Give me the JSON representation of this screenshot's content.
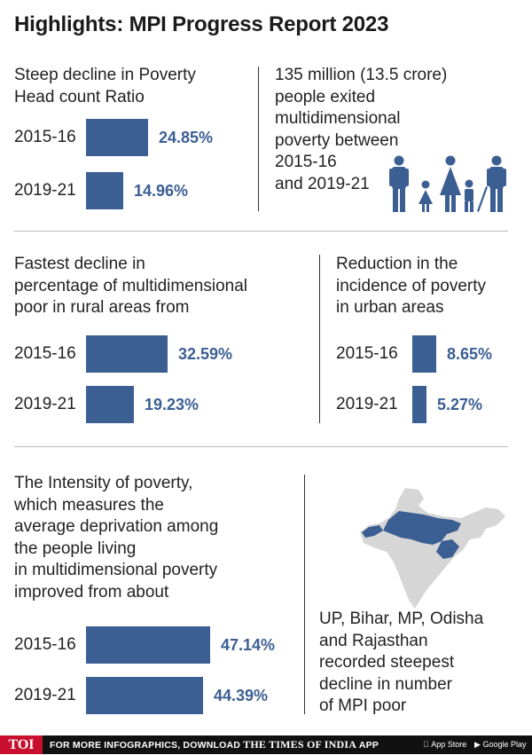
{
  "title": "Highlights: MPI Progress Report 2023",
  "chart_data": [
    {
      "type": "bar",
      "title": "Steep decline in Poverty Head count Ratio",
      "categories": [
        "2015-16",
        "2019-21"
      ],
      "values": [
        24.85,
        14.96
      ],
      "labels": [
        "24.85%",
        "14.96%"
      ]
    },
    {
      "type": "bar",
      "title": "Fastest decline in percentage of multidimensional poor in rural areas from",
      "categories": [
        "2015-16",
        "2019-21"
      ],
      "values": [
        32.59,
        19.23
      ],
      "labels": [
        "32.59%",
        "19.23%"
      ]
    },
    {
      "type": "bar",
      "title": "Reduction in the incidence of poverty in urban areas",
      "categories": [
        "2015-16",
        "2019-21"
      ],
      "values": [
        8.65,
        5.27
      ],
      "labels": [
        "8.65%",
        "5.27%"
      ]
    },
    {
      "type": "bar",
      "title": "The Intensity of poverty, which measures the average deprivation among the people living in multidimensional poverty improved from about",
      "categories": [
        "2015-16",
        "2019-21"
      ],
      "values": [
        47.14,
        44.39
      ],
      "labels": [
        "47.14%",
        "44.39%"
      ]
    }
  ],
  "panels": {
    "hcr": {
      "line1": "Steep decline in Poverty",
      "line2": "Head count Ratio"
    },
    "exited": {
      "lines": [
        "135 million (13.5 crore)",
        "people exited",
        "multidimensional",
        "poverty between",
        "2015-16",
        "and 2019-21"
      ]
    },
    "rural": {
      "lines": [
        "Fastest decline in",
        "percentage of multidimensional",
        "poor in rural areas from"
      ]
    },
    "urban": {
      "lines": [
        "Reduction in the",
        "incidence of poverty",
        "in urban areas"
      ]
    },
    "intensity": {
      "lines": [
        "The Intensity of poverty,",
        "which measures the",
        "average deprivation among",
        "the people living",
        "in multidimensional poverty",
        "improved from about"
      ]
    },
    "states": {
      "lines": [
        "UP, Bihar, MP, Odisha",
        "and Rajasthan",
        "recorded steepest",
        "decline in number",
        "of MPI poor"
      ]
    }
  },
  "icons": {
    "people": "family-icon",
    "map": "india-map-icon"
  },
  "colors": {
    "bar": "#3b5e93",
    "map_highlight": "#3b5e93",
    "map_base": "#d6d6d6"
  },
  "footer": {
    "logo": "TOI",
    "text": "FOR MORE INFOGRAPHICS, DOWNLOAD",
    "brand": "THE TIMES OF INDIA",
    "app": "APP",
    "appstore": "App Store",
    "googleplay": "Google Play"
  }
}
